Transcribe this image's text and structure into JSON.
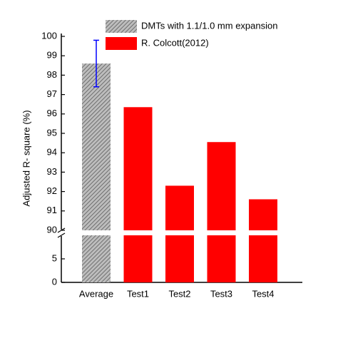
{
  "chart_data": {
    "type": "bar",
    "y_label": "Adjusted R- square (%)",
    "categories": [
      "Average",
      "Test1",
      "Test2",
      "Test3",
      "Test4"
    ],
    "series": [
      {
        "name": "DMTs with 1.1/1.0 mm expansion",
        "color": "#808080",
        "pattern": "hatch",
        "values": [
          98.6,
          null,
          null,
          null,
          null
        ],
        "errors": [
          1.2,
          null,
          null,
          null,
          null
        ],
        "error_color": "#0000ff"
      },
      {
        "name": "R. Colcott(2012)",
        "color": "#ff0000",
        "values": [
          null,
          96.35,
          92.3,
          94.55,
          91.6
        ]
      }
    ],
    "ylim": [
      0,
      100
    ],
    "y_break": [
      10,
      90
    ],
    "yticks": [
      0,
      5,
      90,
      91,
      92,
      93,
      94,
      95,
      96,
      97,
      98,
      99,
      100
    ],
    "legend": "top"
  }
}
